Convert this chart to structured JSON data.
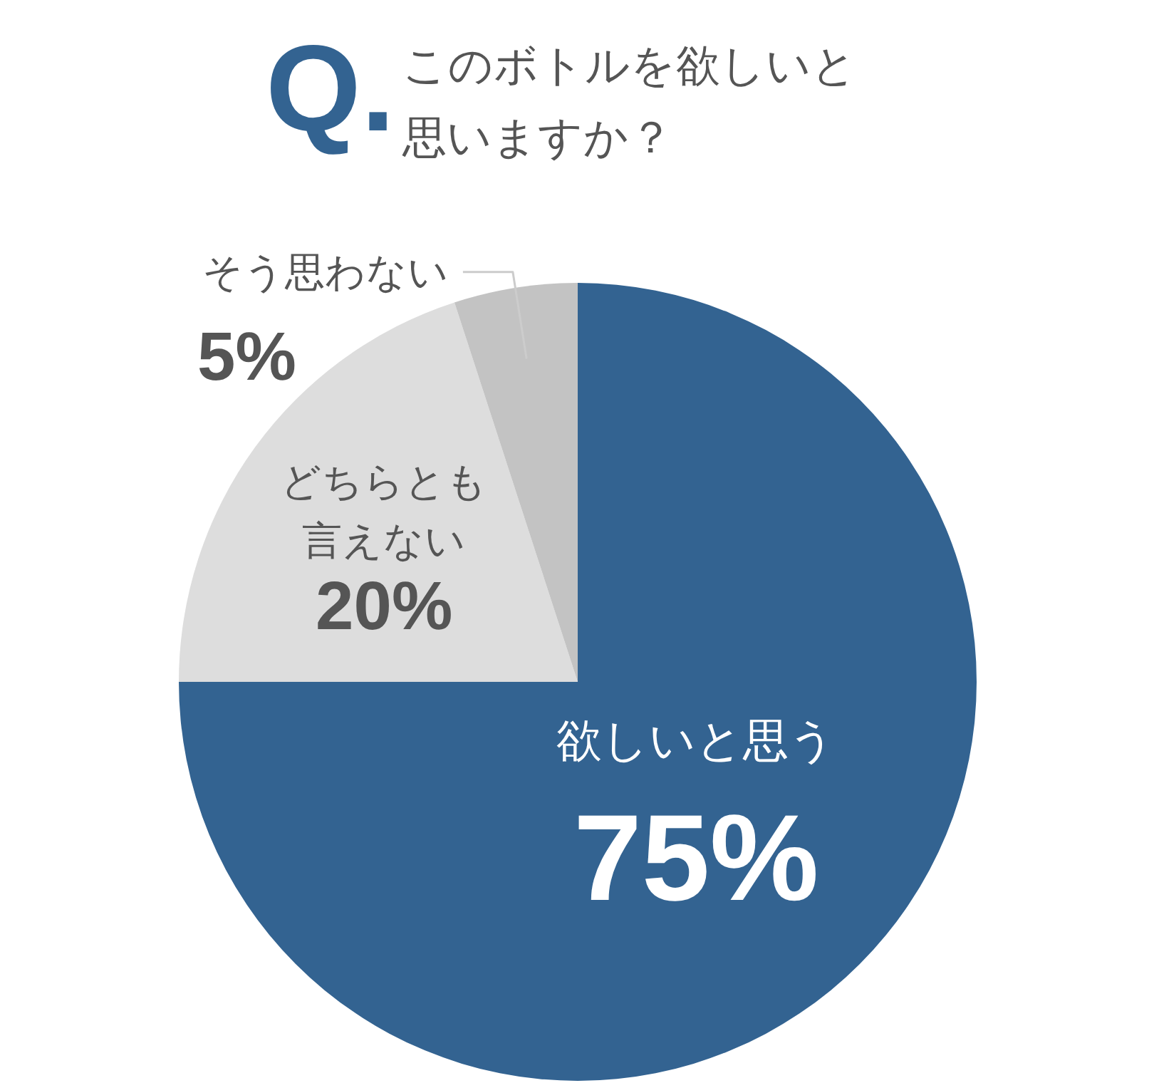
{
  "chart_data": {
    "type": "pie",
    "title": "このボトルを欲しいと思いますか？",
    "annotations": [
      "Q."
    ],
    "categories": [
      "欲しいと思う",
      "どちらとも言えない",
      "そう思わない"
    ],
    "values": [
      75,
      20,
      5
    ],
    "colors": [
      "#336391",
      "#dddddd",
      "#c3c3c3"
    ],
    "value_labels": [
      "75%",
      "20%",
      "5%"
    ]
  }
}
